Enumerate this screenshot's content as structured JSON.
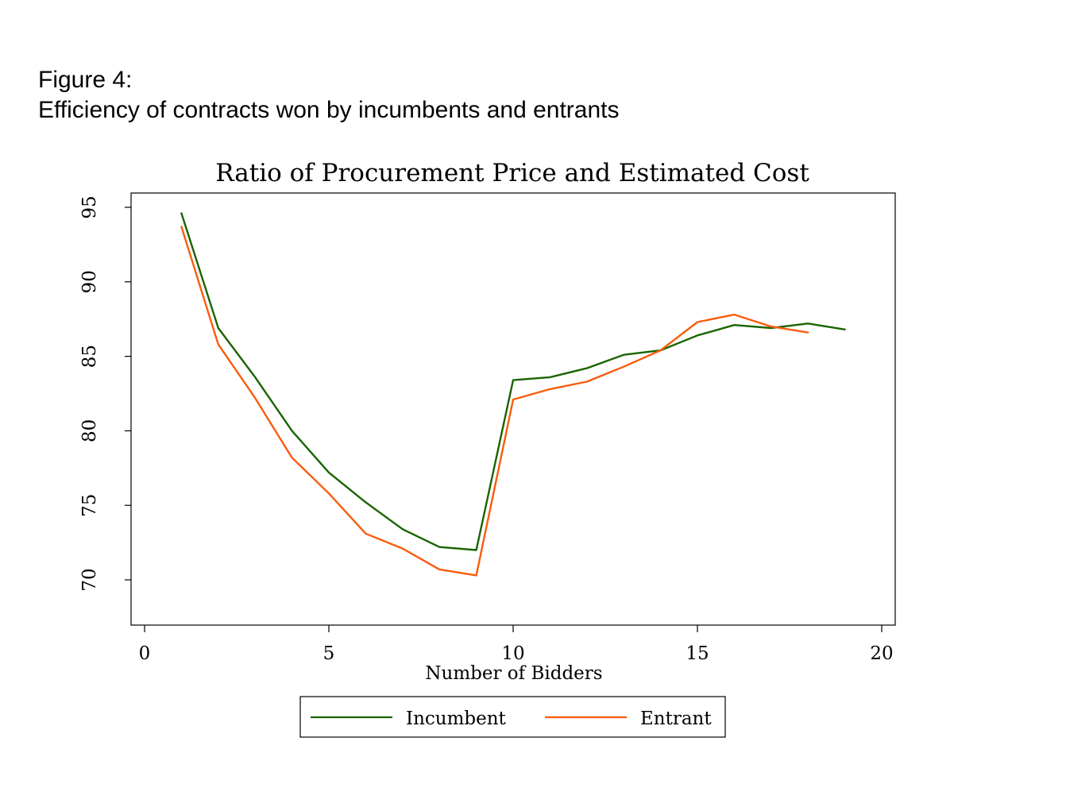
{
  "figure": {
    "label": "Figure 4:",
    "caption": "Efficiency of contracts won by incumbents and entrants"
  },
  "chart_data": {
    "type": "line",
    "title": "Ratio of Procurement Price and Estimated Cost",
    "xlabel": "Number of Bidders",
    "ylabel": "",
    "xlim": [
      0,
      20
    ],
    "ylim": [
      67,
      95.5
    ],
    "xticks": [
      0,
      5,
      10,
      15,
      20
    ],
    "yticks": [
      70,
      75,
      80,
      85,
      90,
      95
    ],
    "grid": false,
    "legend_position": "bottom",
    "series": [
      {
        "name": "Incumbent",
        "color": "#1a6400",
        "x": [
          1,
          2,
          3,
          4,
          5,
          6,
          7,
          8,
          9,
          10,
          11,
          12,
          13,
          14,
          15,
          16,
          17,
          18,
          19
        ],
        "values": [
          94.6,
          86.9,
          83.6,
          80.0,
          77.2,
          75.2,
          73.4,
          72.2,
          72.0,
          83.4,
          83.6,
          84.2,
          85.1,
          85.4,
          86.4,
          87.1,
          86.9,
          87.2,
          86.8
        ]
      },
      {
        "name": "Entrant",
        "color": "#f95c0e",
        "x": [
          1,
          2,
          3,
          4,
          5,
          6,
          7,
          8,
          9,
          10,
          11,
          12,
          13,
          14,
          15,
          16,
          17,
          18
        ],
        "values": [
          93.7,
          85.8,
          82.2,
          78.2,
          75.8,
          73.1,
          72.1,
          70.7,
          70.3,
          82.1,
          82.8,
          83.3,
          84.3,
          85.4,
          87.3,
          87.8,
          87.0,
          86.6
        ]
      }
    ]
  }
}
